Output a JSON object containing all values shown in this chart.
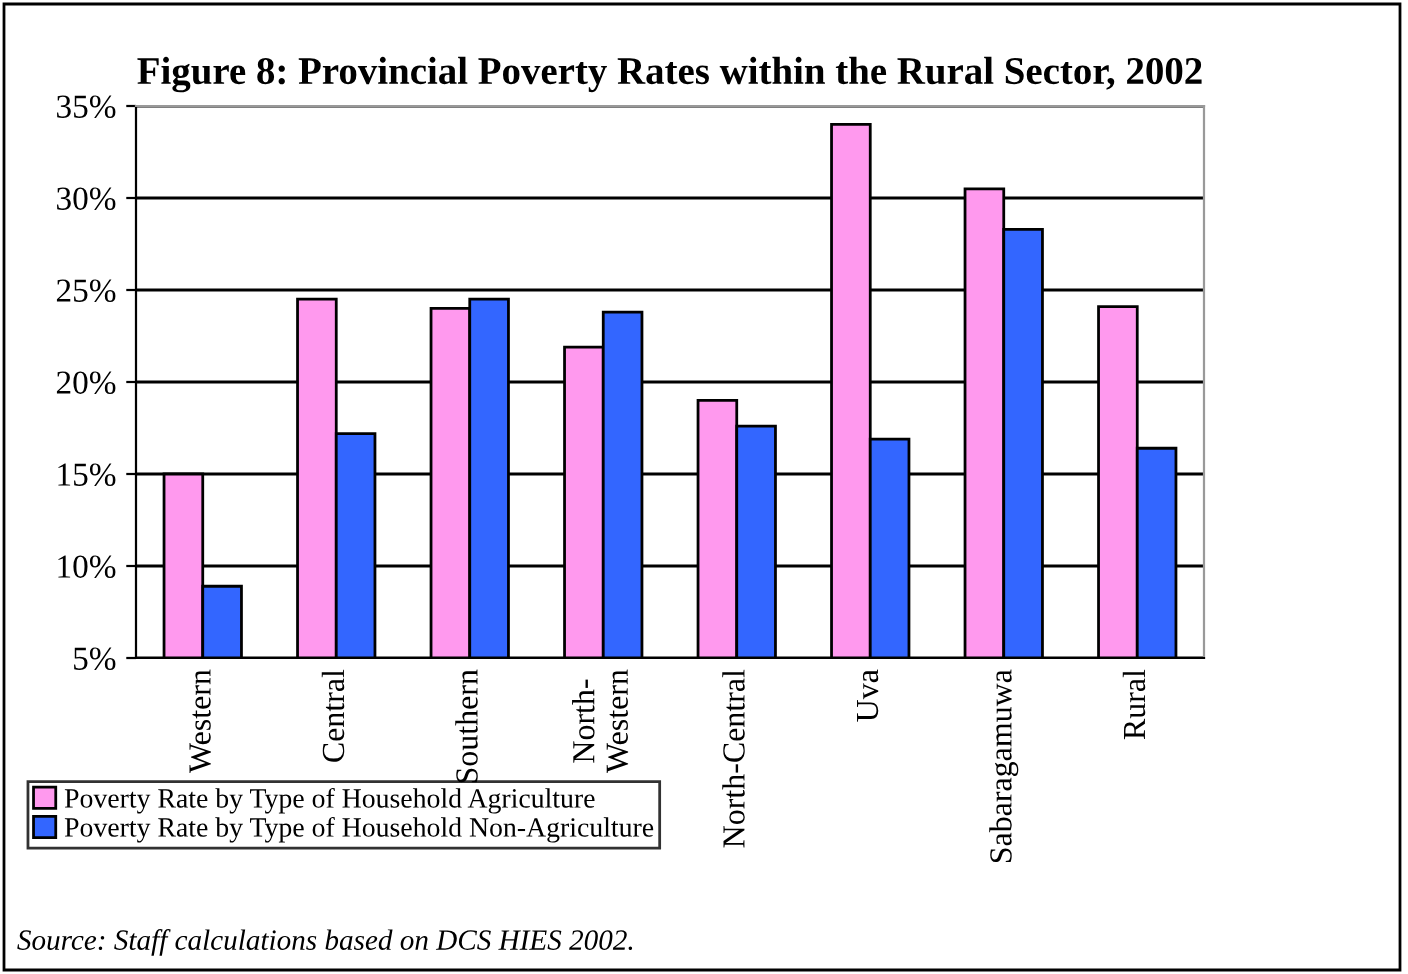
{
  "chart_data": {
    "type": "bar",
    "title": "Figure 8: Provincial Poverty Rates within the Rural Sector, 2002",
    "categories": [
      "Western",
      "Central",
      "Southern",
      "North-\nWestern",
      "North-Central",
      "Uva",
      "Sabaragamuwa",
      "Rural"
    ],
    "series": [
      {
        "name": "Poverty Rate by Type of Household Agriculture",
        "color": "#ff99ee",
        "values": [
          15.0,
          24.5,
          24.0,
          21.9,
          19.0,
          34.0,
          30.5,
          24.1
        ]
      },
      {
        "name": "Poverty Rate by Type of Household Non-Agriculture",
        "color": "#3366ff",
        "values": [
          8.9,
          17.2,
          24.5,
          23.8,
          17.6,
          16.9,
          28.3,
          16.4
        ]
      }
    ],
    "ylim": [
      5,
      35
    ],
    "yticks": [
      {
        "value": 5,
        "label": "5%"
      },
      {
        "value": 10,
        "label": "10%"
      },
      {
        "value": 15,
        "label": "15%"
      },
      {
        "value": 20,
        "label": "20%"
      },
      {
        "value": 25,
        "label": "25%"
      },
      {
        "value": 30,
        "label": "30%"
      },
      {
        "value": 35,
        "label": "35%"
      }
    ],
    "grid": "y",
    "legend": "bottom left",
    "annotations": [
      "Source: Staff calculations based on DCS HIES 2002."
    ]
  }
}
